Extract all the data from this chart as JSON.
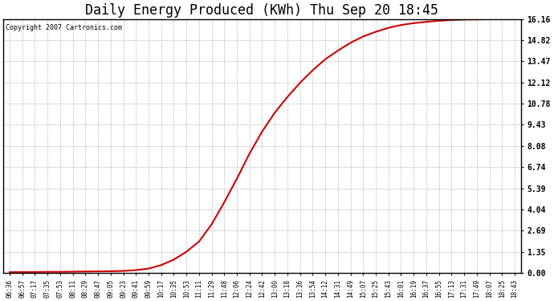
{
  "title": "Daily Energy Produced (KWh) Thu Sep 20 18:45",
  "copyright_text": "Copyright 2007 Cartronics.com",
  "line_color": "#cc0000",
  "background_color": "#ffffff",
  "plot_bg_color": "#ffffff",
  "grid_color": "#aaaaaa",
  "title_fontsize": 12,
  "yticks": [
    0.0,
    1.35,
    2.69,
    4.04,
    5.39,
    6.74,
    8.08,
    9.43,
    10.78,
    12.12,
    13.47,
    14.82,
    16.16
  ],
  "ytick_labels": [
    "0.00",
    "1.35",
    "2.69",
    "4.04",
    "5.39",
    "6.74",
    "8.08",
    "9.43",
    "10.78",
    "12.12",
    "13.47",
    "14.82",
    "16.16"
  ],
  "ylim": [
    0.0,
    16.16
  ],
  "xtick_labels": [
    "06:36",
    "06:57",
    "07:17",
    "07:35",
    "07:53",
    "08:11",
    "08:29",
    "08:47",
    "09:05",
    "09:23",
    "09:41",
    "09:59",
    "10:17",
    "10:35",
    "10:53",
    "11:11",
    "11:29",
    "11:48",
    "12:06",
    "12:24",
    "12:42",
    "13:00",
    "13:18",
    "13:36",
    "13:54",
    "14:12",
    "14:31",
    "14:49",
    "15:07",
    "15:25",
    "15:43",
    "16:01",
    "16:19",
    "16:37",
    "16:55",
    "17:13",
    "17:31",
    "17:49",
    "18:07",
    "18:25",
    "18:43"
  ],
  "control_points_x": [
    0,
    1,
    2,
    3,
    4,
    5,
    6,
    7,
    8,
    9,
    10,
    11,
    12,
    13,
    14,
    15,
    16,
    17,
    18,
    19,
    20,
    21,
    22,
    23,
    24,
    25,
    26,
    27,
    28,
    29,
    30,
    31,
    32,
    33,
    34,
    35,
    36,
    37,
    38,
    39,
    40
  ],
  "control_points_y": [
    0.05,
    0.06,
    0.06,
    0.07,
    0.07,
    0.08,
    0.09,
    0.1,
    0.11,
    0.13,
    0.18,
    0.28,
    0.5,
    0.85,
    1.35,
    2.0,
    3.1,
    4.5,
    6.0,
    7.6,
    9.0,
    10.2,
    11.2,
    12.1,
    12.9,
    13.6,
    14.15,
    14.65,
    15.05,
    15.35,
    15.6,
    15.78,
    15.9,
    15.98,
    16.05,
    16.1,
    16.13,
    16.14,
    16.15,
    16.16,
    16.16
  ],
  "max_value": 16.16,
  "line_width": 1.5
}
